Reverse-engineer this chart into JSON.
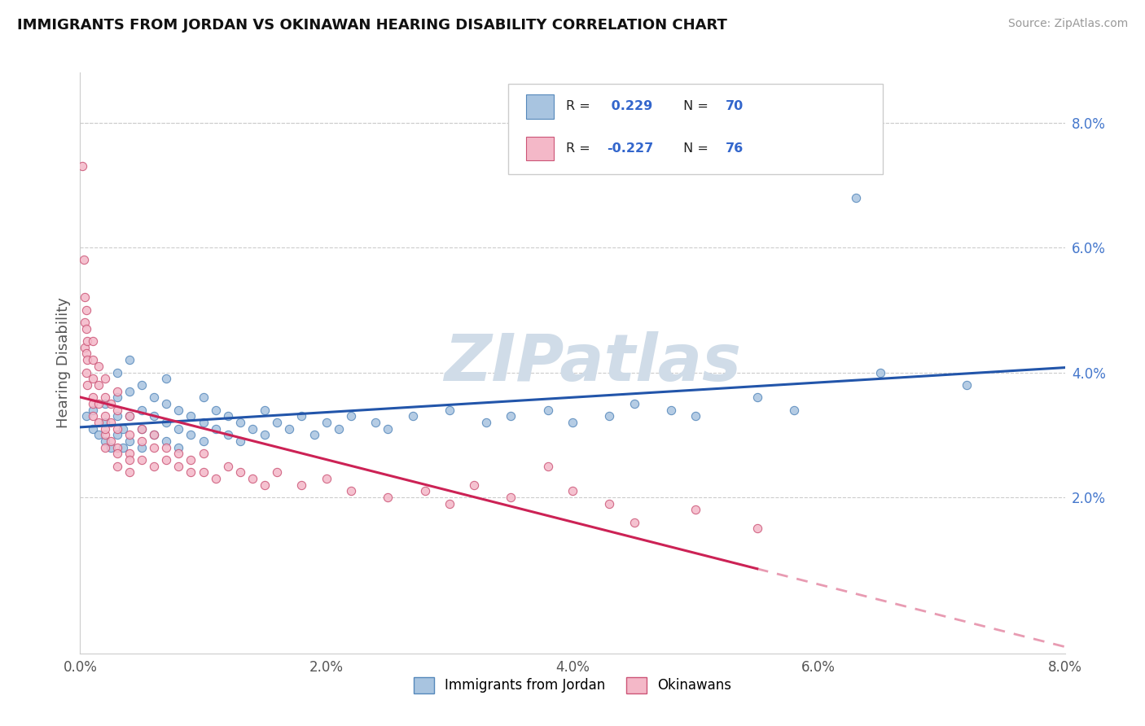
{
  "title": "IMMIGRANTS FROM JORDAN VS OKINAWAN HEARING DISABILITY CORRELATION CHART",
  "source": "Source: ZipAtlas.com",
  "ylabel": "Hearing Disability",
  "xlim": [
    0.0,
    0.08
  ],
  "ylim": [
    -0.005,
    0.088
  ],
  "xticks": [
    0.0,
    0.02,
    0.04,
    0.06,
    0.08
  ],
  "yticks": [
    0.02,
    0.04,
    0.06,
    0.08
  ],
  "xtick_labels": [
    "0.0%",
    "2.0%",
    "4.0%",
    "6.0%",
    "8.0%"
  ],
  "ytick_labels": [
    "2.0%",
    "4.0%",
    "6.0%",
    "8.0%"
  ],
  "legend_labels": [
    "Immigrants from Jordan",
    "Okinawans"
  ],
  "jordan_color": "#a8c4e0",
  "okinawan_color": "#f4b8c8",
  "jordan_edge": "#5588bb",
  "okinawan_edge": "#cc5577",
  "jordan_line_color": "#2255aa",
  "okinawan_line_color": "#cc2255",
  "r_jordan": 0.229,
  "n_jordan": 70,
  "r_okinawan": -0.227,
  "n_okinawan": 76,
  "watermark": "ZIPatlas",
  "watermark_color": "#d0dce8",
  "jordan_scatter": [
    [
      0.0005,
      0.033
    ],
    [
      0.001,
      0.031
    ],
    [
      0.001,
      0.034
    ],
    [
      0.0015,
      0.03
    ],
    [
      0.002,
      0.029
    ],
    [
      0.002,
      0.032
    ],
    [
      0.002,
      0.035
    ],
    [
      0.0025,
      0.028
    ],
    [
      0.003,
      0.03
    ],
    [
      0.003,
      0.033
    ],
    [
      0.003,
      0.036
    ],
    [
      0.003,
      0.04
    ],
    [
      0.0035,
      0.028
    ],
    [
      0.0035,
      0.031
    ],
    [
      0.004,
      0.029
    ],
    [
      0.004,
      0.033
    ],
    [
      0.004,
      0.037
    ],
    [
      0.004,
      0.042
    ],
    [
      0.005,
      0.028
    ],
    [
      0.005,
      0.031
    ],
    [
      0.005,
      0.034
    ],
    [
      0.005,
      0.038
    ],
    [
      0.006,
      0.03
    ],
    [
      0.006,
      0.033
    ],
    [
      0.006,
      0.036
    ],
    [
      0.007,
      0.029
    ],
    [
      0.007,
      0.032
    ],
    [
      0.007,
      0.035
    ],
    [
      0.007,
      0.039
    ],
    [
      0.008,
      0.028
    ],
    [
      0.008,
      0.031
    ],
    [
      0.008,
      0.034
    ],
    [
      0.009,
      0.03
    ],
    [
      0.009,
      0.033
    ],
    [
      0.01,
      0.029
    ],
    [
      0.01,
      0.032
    ],
    [
      0.01,
      0.036
    ],
    [
      0.011,
      0.031
    ],
    [
      0.011,
      0.034
    ],
    [
      0.012,
      0.03
    ],
    [
      0.012,
      0.033
    ],
    [
      0.013,
      0.029
    ],
    [
      0.013,
      0.032
    ],
    [
      0.014,
      0.031
    ],
    [
      0.015,
      0.03
    ],
    [
      0.015,
      0.034
    ],
    [
      0.016,
      0.032
    ],
    [
      0.017,
      0.031
    ],
    [
      0.018,
      0.033
    ],
    [
      0.019,
      0.03
    ],
    [
      0.02,
      0.032
    ],
    [
      0.021,
      0.031
    ],
    [
      0.022,
      0.033
    ],
    [
      0.024,
      0.032
    ],
    [
      0.025,
      0.031
    ],
    [
      0.027,
      0.033
    ],
    [
      0.03,
      0.034
    ],
    [
      0.033,
      0.032
    ],
    [
      0.035,
      0.033
    ],
    [
      0.038,
      0.034
    ],
    [
      0.04,
      0.032
    ],
    [
      0.043,
      0.033
    ],
    [
      0.045,
      0.035
    ],
    [
      0.048,
      0.034
    ],
    [
      0.05,
      0.033
    ],
    [
      0.055,
      0.036
    ],
    [
      0.058,
      0.034
    ],
    [
      0.063,
      0.068
    ],
    [
      0.065,
      0.04
    ],
    [
      0.072,
      0.038
    ]
  ],
  "okinawan_scatter": [
    [
      0.0002,
      0.073
    ],
    [
      0.0003,
      0.058
    ],
    [
      0.0004,
      0.044
    ],
    [
      0.0004,
      0.048
    ],
    [
      0.0004,
      0.052
    ],
    [
      0.0005,
      0.04
    ],
    [
      0.0005,
      0.043
    ],
    [
      0.0005,
      0.047
    ],
    [
      0.0005,
      0.05
    ],
    [
      0.0006,
      0.038
    ],
    [
      0.0006,
      0.042
    ],
    [
      0.0006,
      0.045
    ],
    [
      0.001,
      0.036
    ],
    [
      0.001,
      0.039
    ],
    [
      0.001,
      0.042
    ],
    [
      0.001,
      0.045
    ],
    [
      0.001,
      0.033
    ],
    [
      0.001,
      0.035
    ],
    [
      0.0015,
      0.032
    ],
    [
      0.0015,
      0.035
    ],
    [
      0.0015,
      0.038
    ],
    [
      0.0015,
      0.041
    ],
    [
      0.002,
      0.03
    ],
    [
      0.002,
      0.033
    ],
    [
      0.002,
      0.036
    ],
    [
      0.002,
      0.039
    ],
    [
      0.002,
      0.028
    ],
    [
      0.002,
      0.031
    ],
    [
      0.0025,
      0.029
    ],
    [
      0.0025,
      0.032
    ],
    [
      0.0025,
      0.035
    ],
    [
      0.003,
      0.028
    ],
    [
      0.003,
      0.031
    ],
    [
      0.003,
      0.034
    ],
    [
      0.003,
      0.037
    ],
    [
      0.003,
      0.025
    ],
    [
      0.003,
      0.027
    ],
    [
      0.004,
      0.027
    ],
    [
      0.004,
      0.03
    ],
    [
      0.004,
      0.033
    ],
    [
      0.004,
      0.024
    ],
    [
      0.004,
      0.026
    ],
    [
      0.005,
      0.026
    ],
    [
      0.005,
      0.029
    ],
    [
      0.005,
      0.031
    ],
    [
      0.006,
      0.025
    ],
    [
      0.006,
      0.028
    ],
    [
      0.006,
      0.03
    ],
    [
      0.007,
      0.026
    ],
    [
      0.007,
      0.028
    ],
    [
      0.008,
      0.025
    ],
    [
      0.008,
      0.027
    ],
    [
      0.009,
      0.024
    ],
    [
      0.009,
      0.026
    ],
    [
      0.01,
      0.024
    ],
    [
      0.01,
      0.027
    ],
    [
      0.011,
      0.023
    ],
    [
      0.012,
      0.025
    ],
    [
      0.013,
      0.024
    ],
    [
      0.014,
      0.023
    ],
    [
      0.015,
      0.022
    ],
    [
      0.016,
      0.024
    ],
    [
      0.018,
      0.022
    ],
    [
      0.02,
      0.023
    ],
    [
      0.022,
      0.021
    ],
    [
      0.025,
      0.02
    ],
    [
      0.028,
      0.021
    ],
    [
      0.03,
      0.019
    ],
    [
      0.032,
      0.022
    ],
    [
      0.035,
      0.02
    ],
    [
      0.038,
      0.025
    ],
    [
      0.04,
      0.021
    ],
    [
      0.043,
      0.019
    ],
    [
      0.045,
      0.016
    ],
    [
      0.05,
      0.018
    ],
    [
      0.055,
      0.015
    ]
  ]
}
